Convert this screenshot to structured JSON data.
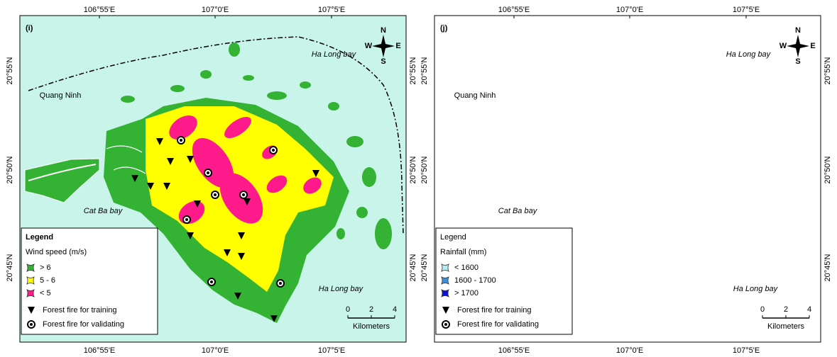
{
  "panels": [
    {
      "label": "(i)",
      "top_ticks": [
        "106°55'E",
        "107°0'E",
        "107°5'E"
      ],
      "bottom_ticks": [
        "106°55'E",
        "107°0'E",
        "107°5'E"
      ],
      "left_ticks": [
        "20°55'N",
        "20°50'N",
        "20°45'N"
      ],
      "right_ticks": [
        "20°55'N",
        "20°50'N",
        "20°45'N"
      ],
      "places": [
        "Quang Ninh",
        "Ha Long bay",
        "Cat Ba bay",
        "Ha Long bay"
      ],
      "compass": [
        "N",
        "W",
        "E",
        "S"
      ],
      "legend": {
        "title": "Legend",
        "subtitle": "Wind speed (m/s)",
        "classes": [
          {
            "label": "> 6",
            "color": "#33b233"
          },
          {
            "label": "5 - 6",
            "color": "#ffff00"
          },
          {
            "label": "< 5",
            "color": "#ff1a8c"
          }
        ],
        "points": [
          "Forest fire for training",
          "Forest fire for validating"
        ]
      },
      "scale": {
        "ticks": [
          0,
          2,
          4
        ],
        "unit": "Kilometers"
      }
    },
    {
      "label": "(j)",
      "top_ticks": [
        "106°55'E",
        "107°0'E",
        "107°5'E"
      ],
      "bottom_ticks": [
        "106°55'E",
        "107°0'E",
        "107°5'E"
      ],
      "left_ticks": [
        "20°55'N",
        "20°50'N",
        "20°45'N"
      ],
      "right_ticks": [
        "20°55'N",
        "20°50'N",
        "20°45'N"
      ],
      "places": [
        "Quang Ninh",
        "Ha Long bay",
        "Cat Ba bay",
        "Ha Long bay"
      ],
      "compass": [
        "N",
        "W",
        "E",
        "S"
      ],
      "legend": {
        "title": "Legend",
        "subtitle": "Rainfall (mm)",
        "classes": [
          {
            "label": "< 1600",
            "color": "#b3ecf2"
          },
          {
            "label": "1600 - 1700",
            "color": "#3d8fe0"
          },
          {
            "label": "> 1700",
            "color": "#0a12d8"
          }
        ],
        "points": [
          "Forest fire for training",
          "Forest fire for validating"
        ]
      },
      "scale": {
        "ticks": [
          0,
          2,
          4
        ],
        "unit": "Kilometers"
      }
    }
  ]
}
